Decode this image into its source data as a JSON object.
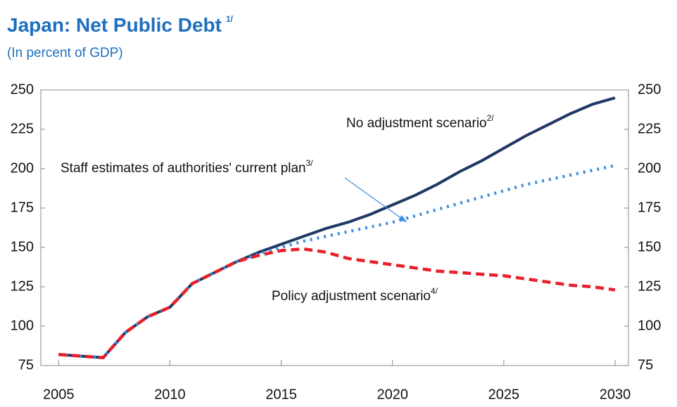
{
  "chart_data": {
    "type": "line",
    "title": "Japan: Net Public Debt",
    "title_sup": "1/",
    "subtitle": "(In percent of GDP)",
    "x": [
      2005,
      2006,
      2007,
      2008,
      2009,
      2010,
      2011,
      2012,
      2013,
      2014,
      2015,
      2016,
      2017,
      2018,
      2019,
      2020,
      2021,
      2022,
      2023,
      2024,
      2025,
      2026,
      2027,
      2028,
      2029,
      2030
    ],
    "series": [
      {
        "name": "No adjustment scenario",
        "color": "#1f3864",
        "style": "solid",
        "values": [
          82,
          81,
          80,
          96,
          106,
          112,
          127,
          134,
          141,
          147,
          152,
          157,
          162,
          166,
          171,
          177,
          183,
          190,
          198,
          205,
          213,
          221,
          228,
          235,
          241,
          245
        ]
      },
      {
        "name": "Staff estimates of authorities' current plan",
        "color": "#3b8fe0",
        "style": "dotted",
        "values": [
          82,
          81,
          80,
          96,
          106,
          112,
          127,
          134,
          141,
          146,
          150,
          154,
          157,
          160,
          163,
          166,
          170,
          174,
          178,
          182,
          186,
          190,
          193,
          196,
          199,
          202
        ]
      },
      {
        "name": "Policy adjustment scenario",
        "color": "#e8202a",
        "style": "dashed",
        "values": [
          82,
          81,
          80,
          96,
          106,
          112,
          127,
          134,
          141,
          145,
          148,
          149,
          147,
          143,
          141,
          139,
          137,
          135,
          134,
          133,
          132,
          130,
          128,
          126,
          125,
          123
        ]
      }
    ],
    "annotations": [
      {
        "text": "No adjustment scenario",
        "sup": "2/"
      },
      {
        "text": "Staff estimates of authorities' current plan",
        "sup": "3/"
      },
      {
        "text": "Policy adjustment scenario",
        "sup": "4/"
      }
    ],
    "xlim": [
      2004.2,
      2030.6
    ],
    "xticks": [
      2005,
      2010,
      2015,
      2020,
      2025,
      2030
    ],
    "ylim": [
      75,
      250
    ],
    "yticks": [
      75,
      100,
      125,
      150,
      175,
      200,
      225,
      250
    ],
    "y2lim": [
      75,
      250
    ],
    "y2ticks": [
      75,
      100,
      125,
      150,
      175,
      200,
      225,
      250
    ]
  }
}
